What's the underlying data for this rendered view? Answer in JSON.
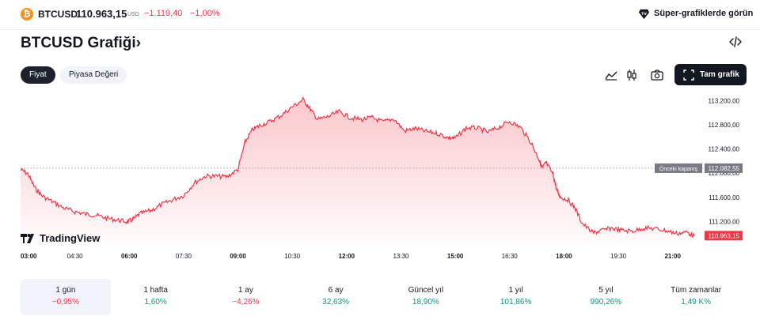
{
  "header": {
    "coin_icon": "bitcoin-icon",
    "coin_glyph": "₿",
    "symbol": "BTCUSD",
    "price": "110.963,15",
    "currency": "USD",
    "change": "−1.119,40",
    "change_percent": "−1,00%",
    "super_charts_label": "Süper-grafiklerde görün"
  },
  "title": {
    "text": "BTCUSD Grafiği",
    "chevron": "›"
  },
  "toggles": {
    "price": "Fiyat",
    "market_cap": "Piyasa Değeri"
  },
  "toolbar": {
    "line_icon": "area-chart-icon",
    "candle_icon": "candlestick-icon",
    "snapshot_icon": "camera-icon",
    "fullscreen_label": "Tam grafik"
  },
  "watermark": "TradingView",
  "colors": {
    "line": "#f23645",
    "negative": "#f23645",
    "positive": "#089981"
  },
  "chart_data": {
    "type": "area",
    "x_ticks": [
      "03:00",
      "04:30",
      "06:00",
      "07:30",
      "09:00",
      "10:30",
      "12:00",
      "13:30",
      "15:00",
      "16:30",
      "18:00",
      "19:30",
      "21:00"
    ],
    "x_range": [
      3,
      21.75
    ],
    "y_ticks": [
      "113.200,00",
      "112.800,00",
      "112.400,00",
      "112.000,00",
      "111.600,00",
      "111.200,00"
    ],
    "y_tick_values": [
      113200,
      112800,
      112400,
      112000,
      111600,
      111200
    ],
    "y_range": [
      110850,
      113300
    ],
    "previous_close": {
      "label": "Önceki kapanış",
      "value": 112082.55,
      "value_label": "112.082,55"
    },
    "last_price": {
      "value": 110963.15,
      "value_label": "110.963,15"
    },
    "series": [
      {
        "x": [
          3.0,
          3.2,
          3.4,
          3.6,
          3.9,
          4.2,
          4.5,
          4.8,
          5.1,
          5.4,
          5.7,
          5.95,
          6.1,
          6.3,
          6.6,
          6.9,
          7.2,
          7.5,
          7.8,
          8.1,
          8.4,
          8.7,
          9.0,
          9.2,
          9.4,
          9.6,
          9.9,
          10.2,
          10.5,
          10.8,
          11.0,
          11.2,
          11.5,
          11.8,
          12.1,
          12.4,
          12.7,
          13.0,
          13.3,
          13.6,
          13.9,
          14.2,
          14.5,
          14.8,
          15.0,
          15.3,
          15.6,
          15.9,
          16.2,
          16.5,
          16.8,
          17.1,
          17.3,
          17.4,
          17.5,
          17.7,
          17.8,
          17.9,
          18.1,
          18.3,
          18.5,
          18.8,
          19.0,
          19.3,
          19.6,
          19.9,
          20.2,
          20.5,
          20.8,
          21.1,
          21.4,
          21.6
        ],
        "y": [
          112060,
          111990,
          111750,
          111620,
          111520,
          111420,
          111360,
          111320,
          111300,
          111250,
          111220,
          111190,
          111230,
          111330,
          111380,
          111480,
          111560,
          111630,
          111840,
          111950,
          111950,
          111940,
          112060,
          112520,
          112720,
          112790,
          112860,
          112960,
          113100,
          113220,
          113060,
          112890,
          112940,
          113020,
          112920,
          112890,
          112920,
          112850,
          112900,
          112700,
          112740,
          112690,
          112660,
          112590,
          112580,
          112750,
          112750,
          112680,
          112760,
          112860,
          112760,
          112500,
          112240,
          112080,
          112180,
          111980,
          111720,
          111600,
          111560,
          111430,
          111170,
          111010,
          111040,
          111090,
          111050,
          111040,
          111090,
          111080,
          111050,
          111000,
          111020,
          110963.15
        ]
      }
    ]
  },
  "periods": [
    {
      "label": "1 gün",
      "value": "−0,95%",
      "sign": "neg",
      "selected": true
    },
    {
      "label": "1 hafta",
      "value": "1,60%",
      "sign": "pos",
      "selected": false
    },
    {
      "label": "1 ay",
      "value": "−4,26%",
      "sign": "neg",
      "selected": false
    },
    {
      "label": "6 ay",
      "value": "32,63%",
      "sign": "pos",
      "selected": false
    },
    {
      "label": "Güncel yıl",
      "value": "18,90%",
      "sign": "pos",
      "selected": false
    },
    {
      "label": "1 yıl",
      "value": "101,86%",
      "sign": "pos",
      "selected": false
    },
    {
      "label": "5 yıl",
      "value": "990,26%",
      "sign": "pos",
      "selected": false
    },
    {
      "label": "Tüm zamanlar",
      "value": "1,49 K%",
      "sign": "pos",
      "selected": false
    }
  ]
}
